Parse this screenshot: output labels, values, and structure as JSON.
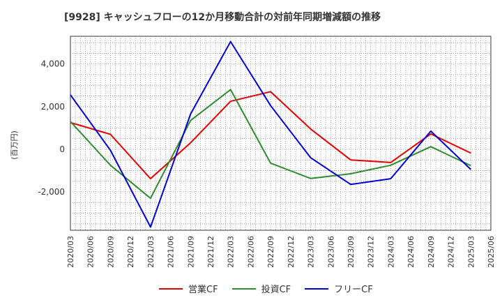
{
  "chart_data": {
    "type": "line",
    "title": "[9928]  キャッシュフローの12か月移動合計の対前年同期増減額の推移",
    "ylabel": "(百万円)",
    "xlabel": "",
    "ylim": [
      -3800,
      5300
    ],
    "yticks": [
      -2000,
      0,
      2000,
      4000
    ],
    "ytick_labels": [
      "-2,000",
      "0",
      "2,000",
      "4,000"
    ],
    "x_ticks": [
      "2020/03",
      "2020/06",
      "2020/09",
      "2020/12",
      "2021/03",
      "2021/06",
      "2021/09",
      "2021/12",
      "2022/03",
      "2022/06",
      "2022/09",
      "2022/12",
      "2023/03",
      "2023/06",
      "2023/09",
      "2023/12",
      "2024/03",
      "2024/06",
      "2024/09",
      "2024/12",
      "2025/03",
      "2025/06"
    ],
    "grid": true,
    "legend_position": "bottom",
    "series": [
      {
        "name": "営業CF",
        "color": "#e00000",
        "points": [
          [
            "2020/03",
            1250
          ],
          [
            "2020/09",
            700
          ],
          [
            "2021/03",
            -1380
          ],
          [
            "2021/09",
            300
          ],
          [
            "2022/03",
            2250
          ],
          [
            "2022/09",
            2700
          ],
          [
            "2023/03",
            950
          ],
          [
            "2023/09",
            -500
          ],
          [
            "2024/03",
            -620
          ],
          [
            "2024/09",
            720
          ],
          [
            "2025/03",
            -180
          ]
        ]
      },
      {
        "name": "投資CF",
        "color": "#2e8b2e",
        "points": [
          [
            "2020/03",
            1300
          ],
          [
            "2020/09",
            -750
          ],
          [
            "2021/03",
            -2300
          ],
          [
            "2021/09",
            1350
          ],
          [
            "2022/03",
            2800
          ],
          [
            "2022/09",
            -650
          ],
          [
            "2023/03",
            -1370
          ],
          [
            "2023/09",
            -1150
          ],
          [
            "2024/03",
            -750
          ],
          [
            "2024/09",
            120
          ],
          [
            "2025/03",
            -770
          ]
        ]
      },
      {
        "name": "フリーCF",
        "color": "#0000d0",
        "points": [
          [
            "2020/03",
            2550
          ],
          [
            "2020/09",
            -50
          ],
          [
            "2021/03",
            -3650
          ],
          [
            "2021/09",
            1650
          ],
          [
            "2022/03",
            5050
          ],
          [
            "2022/09",
            2050
          ],
          [
            "2023/03",
            -400
          ],
          [
            "2023/09",
            -1650
          ],
          [
            "2024/03",
            -1380
          ],
          [
            "2024/09",
            850
          ],
          [
            "2025/03",
            -950
          ]
        ]
      }
    ]
  }
}
